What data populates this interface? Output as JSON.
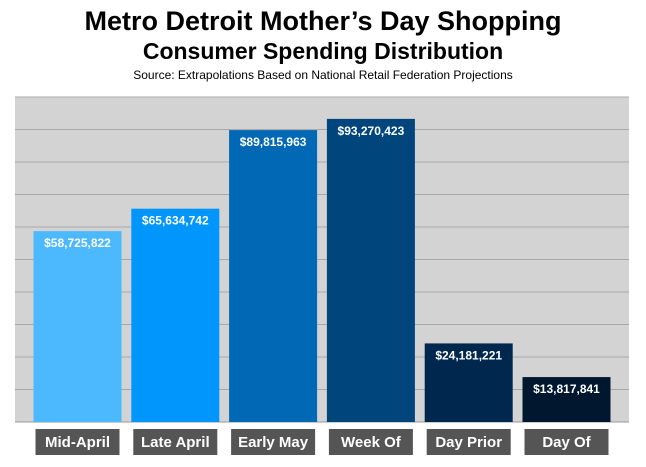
{
  "chart_data": {
    "type": "bar",
    "title": "Metro Detroit Mother’s Day Shopping",
    "subtitle": "Consumer Spending Distribution",
    "source": "Source: Extrapolations Based on National Retail Federation Projections",
    "categories": [
      "Mid-April",
      "Late April",
      "Early May",
      "Week Of",
      "Day Prior",
      "Day Of"
    ],
    "values": [
      58725822,
      65634742,
      89815963,
      93270423,
      24181221,
      13817841
    ],
    "value_labels": [
      "$58,725,822",
      "$65,634,742",
      "$89,815,963",
      "$93,270,423",
      "$24,181,221",
      "$13,817,841"
    ],
    "ylim": [
      0,
      100000000
    ],
    "y_gridline_step": 10000000,
    "grid": true,
    "legend": "none",
    "colors": {
      "background": "#d3d3d3",
      "gridline": "#a8a8a8",
      "category_label_bg": "#555555",
      "bars": [
        "#4cb8fd",
        "#0096fb",
        "#0068b5",
        "#00467c",
        "#00284f",
        "#001730"
      ]
    }
  }
}
